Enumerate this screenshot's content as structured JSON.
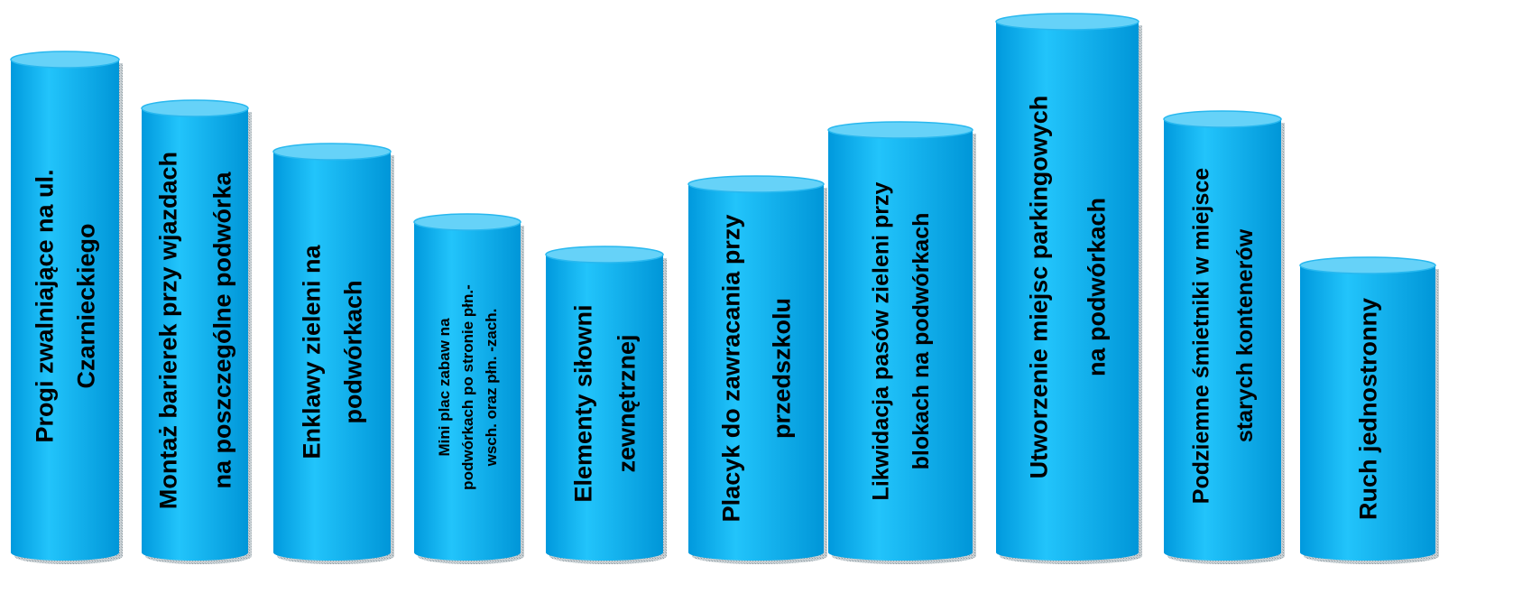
{
  "chart_data": {
    "type": "bar",
    "style": "cylinder",
    "title": "",
    "xlabel": "",
    "ylabel": "",
    "grid": false,
    "legend": "none",
    "colors": {
      "body": "#00aaee",
      "body_highlight": "#22c4fb",
      "top": "#66d2f8",
      "top_edge": "#28b8ef",
      "shadow": "#9aa6ad"
    },
    "ylim": [
      0,
      100
    ],
    "categories": [
      [
        "Progi zwalniające na ul.",
        "Czarnieckiego"
      ],
      [
        "Montaż barierek przy wjazdach",
        "na poszczególne podwórka"
      ],
      [
        "Enklawy zieleni na",
        "podwórkach"
      ],
      [
        "Mini plac zabaw na",
        "podwórkach po stronie płn.-",
        "wsch. oraz płn. -zach."
      ],
      [
        "Elementy siłowni",
        "zewnętrznej"
      ],
      [
        "Placyk do zawracania przy",
        "przedszkolu"
      ],
      [
        "Likwidacja pasów zieleni przy",
        "blokach na podwórkach"
      ],
      [
        "Utworzenie miejsc parkingowych",
        "na podwórkach"
      ],
      [
        "Podziemne śmietniki w miejsce",
        "starych kontenerów"
      ],
      [
        "Ruch jednostronny"
      ]
    ],
    "values": [
      91,
      82,
      74,
      61,
      55,
      68,
      78,
      98,
      80,
      53
    ]
  }
}
